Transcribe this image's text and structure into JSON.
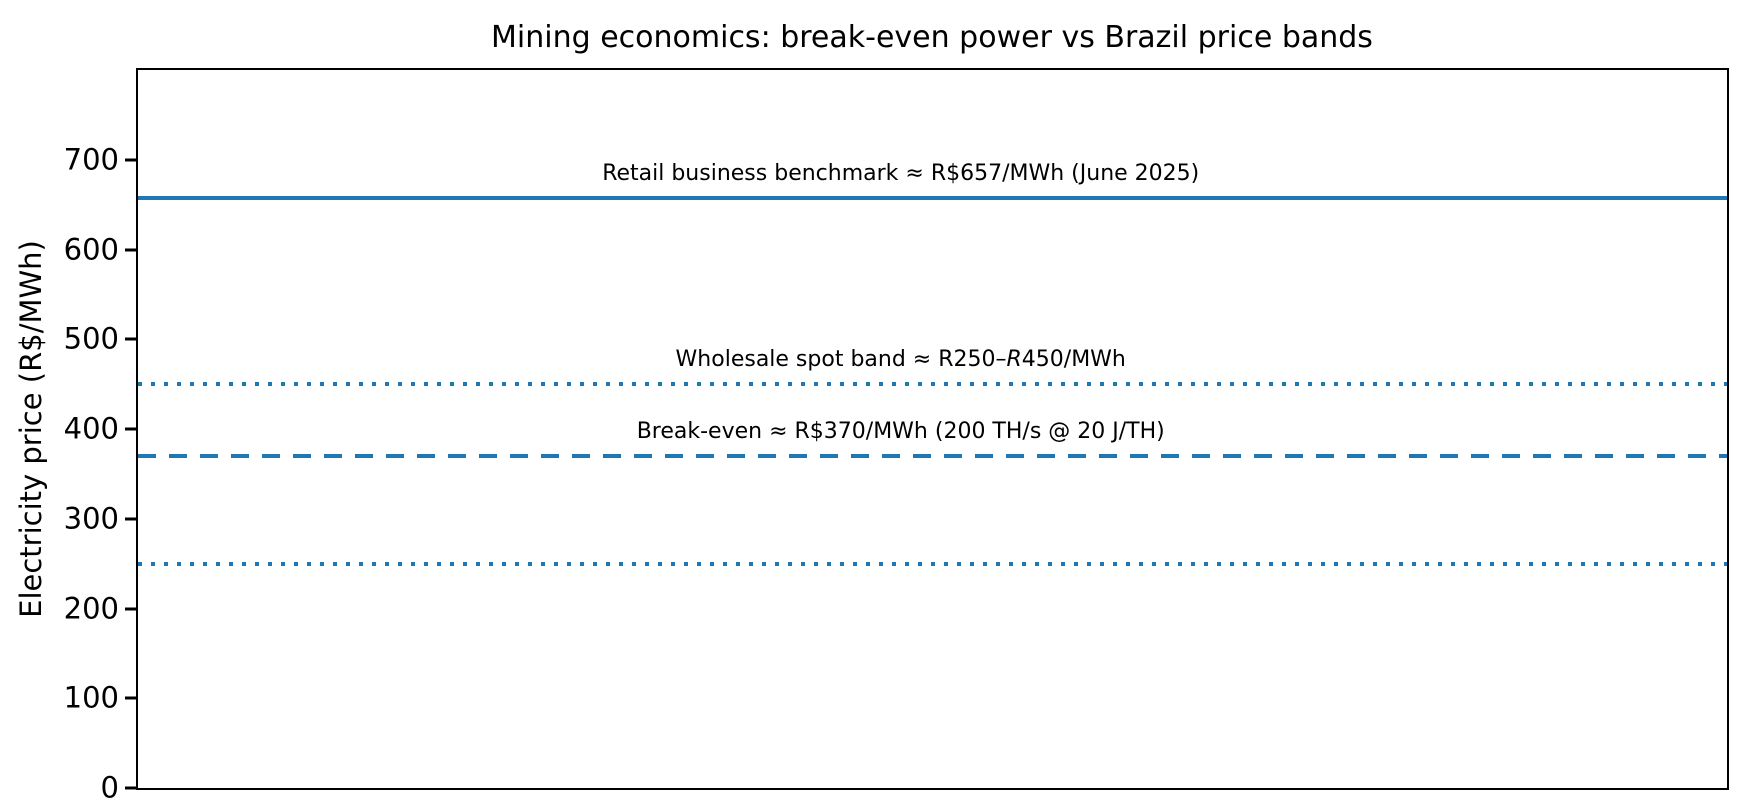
{
  "chart_data": {
    "type": "line",
    "title": "Mining economics: break-even power vs Brazil price bands",
    "xlabel": "",
    "ylabel": "Electricity price (R$/MWh)",
    "ylim": [
      0,
      800
    ],
    "yticks": [
      0,
      100,
      200,
      300,
      400,
      500,
      600,
      700
    ],
    "xticks": [],
    "grid": false,
    "legend_position": "none",
    "line_color": "#1f77b4",
    "frame_color": "#000000",
    "background_color": "#ffffff",
    "hlines": [
      {
        "value": 657,
        "style": "solid",
        "label": "Retail business benchmark ≈ R$657/MWh (June 2025)",
        "label_parts": [
          {
            "text": "Retail business benchmark ≈ R$657/MWh (June 2025)",
            "italic": false
          }
        ]
      },
      {
        "value": 450,
        "style": "dotted",
        "label": "Wholesale spot band ≈ R250–R450/MWh",
        "label_parts": [
          {
            "text": "Wholesale spot band ≈ R250–",
            "italic": false
          },
          {
            "text": "R",
            "italic": true
          },
          {
            "text": "450/MWh",
            "italic": false
          }
        ]
      },
      {
        "value": 370,
        "style": "dashed",
        "label": "Break-even ≈ R$370/MWh (200 TH/s @ 20 J/TH)",
        "label_parts": [
          {
            "text": "Break-even ≈ R$370/MWh (200 TH/s @ 20 J/TH)",
            "italic": false
          }
        ]
      },
      {
        "value": 250,
        "style": "dotted",
        "label": "",
        "label_parts": []
      }
    ]
  }
}
